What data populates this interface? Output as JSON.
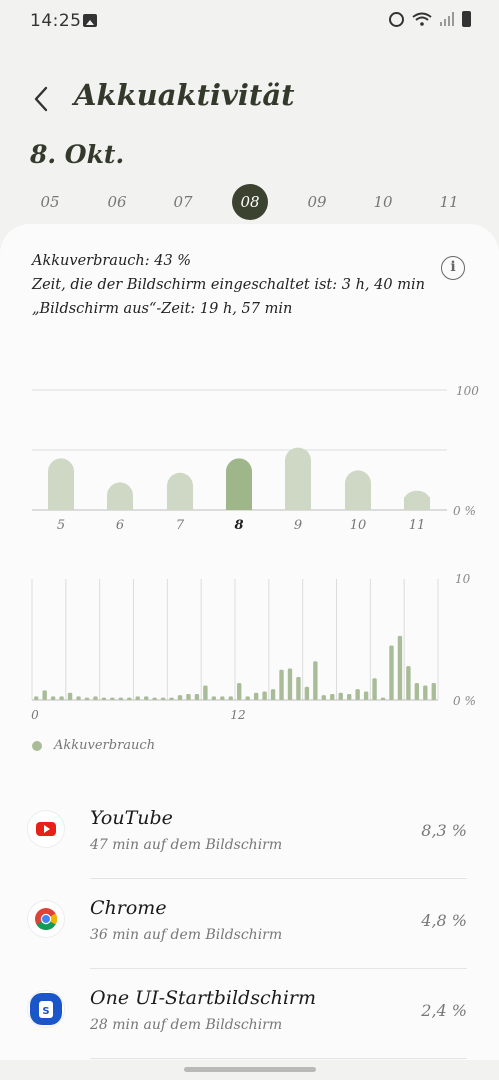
{
  "status_bar": {
    "time": "14:25"
  },
  "header": {
    "title": "Akkuaktivität"
  },
  "date_title": "8. Okt.",
  "days": [
    {
      "label": "05",
      "selected": false
    },
    {
      "label": "06",
      "selected": false
    },
    {
      "label": "07",
      "selected": false
    },
    {
      "label": "08",
      "selected": true
    },
    {
      "label": "09",
      "selected": false
    },
    {
      "label": "10",
      "selected": false
    },
    {
      "label": "11",
      "selected": false
    }
  ],
  "summary": {
    "usage": "Akkuverbrauch: 43 %",
    "screen_on": "Zeit, die der Bildschirm eingeschaltet ist: 3 h, 40 min",
    "screen_off": "„Bildschirm aus“-Zeit: 19 h, 57 min"
  },
  "colors": {
    "bar_default": "#cfd8c5",
    "bar_selected": "#9fb58a",
    "hourly_bar": "#a9bc98",
    "grid": "#dcdcdc",
    "selected_day_bg": "#3b4330"
  },
  "daily_chart": {
    "chart_data": {
      "type": "bar",
      "categories": [
        "5",
        "6",
        "7",
        "8",
        "9",
        "10",
        "11"
      ],
      "values": [
        43,
        23,
        31,
        43,
        52,
        33,
        16
      ],
      "selected_index": 3,
      "ylim": [
        0,
        100
      ],
      "yticks": [
        "100",
        "0 %"
      ]
    }
  },
  "hourly_chart": {
    "chart_data": {
      "type": "bar",
      "x_labels": [
        {
          "x": 0,
          "label": "0"
        },
        {
          "x": 24,
          "label": "12"
        }
      ],
      "x_count": 48,
      "values": [
        0.3,
        0.8,
        0.3,
        0.3,
        0.6,
        0.3,
        0.2,
        0.3,
        0.2,
        0.2,
        0.2,
        0.2,
        0.3,
        0.3,
        0.2,
        0.2,
        0.2,
        0.4,
        0.5,
        0.5,
        1.2,
        0.3,
        0.3,
        0.3,
        1.4,
        0.3,
        0.6,
        0.7,
        0.9,
        2.5,
        2.6,
        1.9,
        1.1,
        3.2,
        0.4,
        0.5,
        0.6,
        0.5,
        0.9,
        0.7,
        1.8,
        0.2,
        4.5,
        5.3,
        2.8,
        1.4,
        1.2,
        1.4
      ],
      "ylim": [
        0,
        10
      ],
      "yticks": [
        "10",
        "0 %"
      ]
    }
  },
  "legend": {
    "label": "Akkuverbrauch"
  },
  "apps": [
    {
      "name": "YouTube",
      "sub": "47 min auf dem Bildschirm",
      "pct": "8,3 %",
      "icon": "youtube-icon"
    },
    {
      "name": "Chrome",
      "sub": "36 min auf dem Bildschirm",
      "pct": "4,8 %",
      "icon": "chrome-icon"
    },
    {
      "name": "One UI-Startbildschirm",
      "sub": "28 min auf dem Bildschirm",
      "pct": "2,4 %",
      "icon": "one-ui-home-icon"
    }
  ]
}
